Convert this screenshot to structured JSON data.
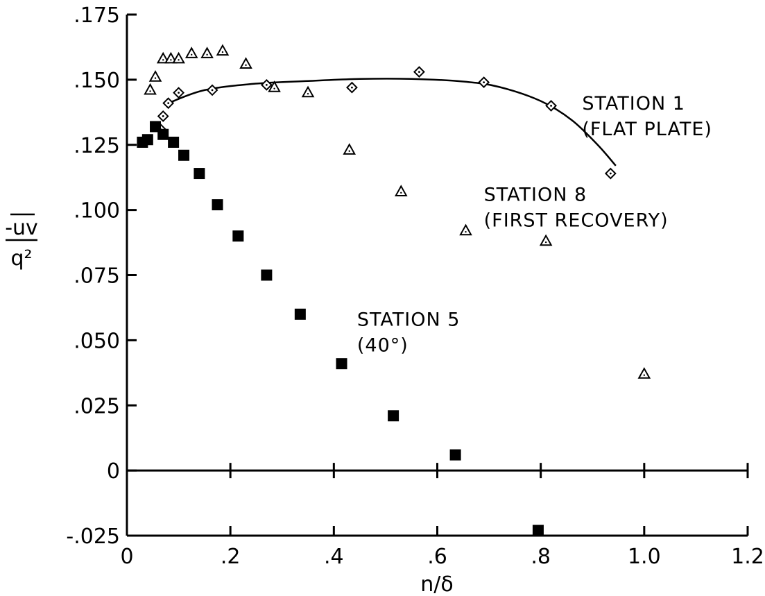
{
  "chart_data": {
    "type": "scatter",
    "xlabel": "n/δ",
    "ylabel_numerator": "-uv",
    "ylabel_denominator": "q²",
    "xlim": [
      0,
      1.2
    ],
    "ylim": [
      -0.025,
      0.175
    ],
    "x_tick_labels": [
      "0",
      ".2",
      ".4",
      ".6",
      ".8",
      "1.0",
      "1.2"
    ],
    "x_ticks": [
      0,
      0.2,
      0.4,
      0.6,
      0.8,
      1.0,
      1.2
    ],
    "y_tick_labels": [
      "-.025",
      "0",
      ".025",
      ".050",
      ".075",
      ".100",
      ".125",
      ".150",
      ".175"
    ],
    "y_ticks": [
      -0.025,
      0,
      0.025,
      0.05,
      0.075,
      0.1,
      0.125,
      0.15,
      0.175
    ],
    "grid": false,
    "series": [
      {
        "name": "STATION 1 (FLAT PLATE)",
        "marker": "diamond",
        "points": [
          [
            0.065,
            0.131
          ],
          [
            0.07,
            0.136
          ],
          [
            0.08,
            0.141
          ],
          [
            0.1,
            0.145
          ],
          [
            0.165,
            0.146
          ],
          [
            0.27,
            0.148
          ],
          [
            0.435,
            0.147
          ],
          [
            0.565,
            0.153
          ],
          [
            0.69,
            0.149
          ],
          [
            0.82,
            0.14
          ],
          [
            0.935,
            0.114
          ]
        ],
        "fit_curve": [
          [
            0.08,
            0.141
          ],
          [
            0.15,
            0.146
          ],
          [
            0.25,
            0.1485
          ],
          [
            0.35,
            0.1495
          ],
          [
            0.45,
            0.1503
          ],
          [
            0.55,
            0.1503
          ],
          [
            0.65,
            0.1493
          ],
          [
            0.72,
            0.1472
          ],
          [
            0.8,
            0.1418
          ],
          [
            0.86,
            0.1345
          ],
          [
            0.91,
            0.125
          ],
          [
            0.945,
            0.117
          ]
        ]
      },
      {
        "name": "STATION 8 (FIRST RECOVERY)",
        "marker": "triangle",
        "points": [
          [
            0.045,
            0.146
          ],
          [
            0.055,
            0.151
          ],
          [
            0.07,
            0.158
          ],
          [
            0.085,
            0.158
          ],
          [
            0.1,
            0.158
          ],
          [
            0.125,
            0.16
          ],
          [
            0.155,
            0.16
          ],
          [
            0.185,
            0.161
          ],
          [
            0.23,
            0.156
          ],
          [
            0.285,
            0.147
          ],
          [
            0.35,
            0.145
          ],
          [
            0.43,
            0.123
          ],
          [
            0.53,
            0.107
          ],
          [
            0.655,
            0.092
          ],
          [
            0.81,
            0.088
          ],
          [
            1.0,
            0.037
          ]
        ]
      },
      {
        "name": "STATION 5 (40°)",
        "marker": "square",
        "points": [
          [
            0.03,
            0.126
          ],
          [
            0.04,
            0.127
          ],
          [
            0.055,
            0.132
          ],
          [
            0.07,
            0.129
          ],
          [
            0.09,
            0.126
          ],
          [
            0.11,
            0.121
          ],
          [
            0.14,
            0.114
          ],
          [
            0.175,
            0.102
          ],
          [
            0.215,
            0.09
          ],
          [
            0.27,
            0.075
          ],
          [
            0.335,
            0.06
          ],
          [
            0.415,
            0.041
          ],
          [
            0.515,
            0.021
          ],
          [
            0.635,
            0.006
          ],
          [
            0.795,
            -0.023
          ]
        ]
      }
    ],
    "annotations": [
      {
        "lines": [
          "STATION 1",
          "(FLAT PLATE)"
        ],
        "x": 0.88,
        "y": 0.1385
      },
      {
        "lines": [
          "STATION 8",
          "(FIRST RECOVERY)"
        ],
        "x": 0.69,
        "y": 0.1035
      },
      {
        "lines": [
          "STATION 5",
          "(40°)"
        ],
        "x": 0.445,
        "y": 0.0555
      }
    ]
  }
}
